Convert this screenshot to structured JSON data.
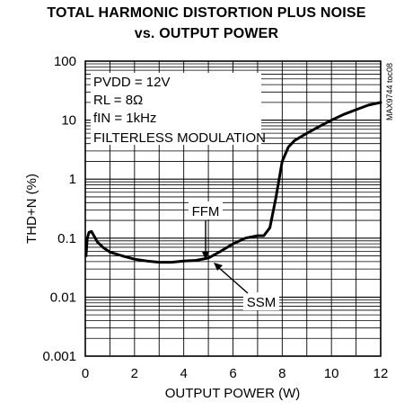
{
  "chart_data": {
    "type": "line",
    "title": "TOTAL HARMONIC DISTORTION PLUS NOISE",
    "subtitle": "vs. OUTPUT POWER",
    "xlabel": "OUTPUT POWER (W)",
    "ylabel": "THD+N (%)",
    "xlim": [
      0,
      12
    ],
    "ylim": [
      0.001,
      100
    ],
    "yscale": "log",
    "grid": true,
    "x_ticks": [
      "0",
      "2",
      "4",
      "6",
      "8",
      "10",
      "12"
    ],
    "y_ticks": [
      "0.001",
      "0.01",
      "0.1",
      "1",
      "10",
      "100"
    ],
    "conditions": [
      "PVDD = 12V",
      "RL = 8Ω",
      "fIN = 1kHz",
      "FILTERLESS MODULATION"
    ],
    "side_label": "MAX9744 toc08",
    "annotations": [
      "FFM",
      "SSM"
    ],
    "series": [
      {
        "points": [
          [
            0.03,
            0.05
          ],
          [
            0.08,
            0.1
          ],
          [
            0.15,
            0.125
          ],
          [
            0.25,
            0.13
          ],
          [
            0.35,
            0.11
          ],
          [
            0.5,
            0.085
          ],
          [
            0.75,
            0.068
          ],
          [
            1.0,
            0.058
          ],
          [
            1.5,
            0.05
          ],
          [
            2.0,
            0.044
          ],
          [
            2.5,
            0.041
          ],
          [
            3.0,
            0.039
          ],
          [
            3.5,
            0.039
          ],
          [
            4.0,
            0.041
          ],
          [
            4.5,
            0.042
          ],
          [
            5.0,
            0.046
          ],
          [
            5.5,
            0.06
          ],
          [
            6.0,
            0.08
          ],
          [
            6.5,
            0.1
          ],
          [
            7.0,
            0.11
          ],
          [
            7.25,
            0.11
          ],
          [
            7.5,
            0.15
          ],
          [
            7.75,
            0.5
          ],
          [
            8.0,
            2.0
          ],
          [
            8.25,
            3.5
          ],
          [
            8.5,
            4.5
          ],
          [
            9.0,
            6.0
          ],
          [
            9.5,
            7.8
          ],
          [
            10.0,
            10.0
          ],
          [
            10.5,
            12.5
          ],
          [
            11.0,
            15.0
          ],
          [
            11.5,
            18.0
          ],
          [
            12.0,
            20.0
          ]
        ]
      }
    ]
  }
}
